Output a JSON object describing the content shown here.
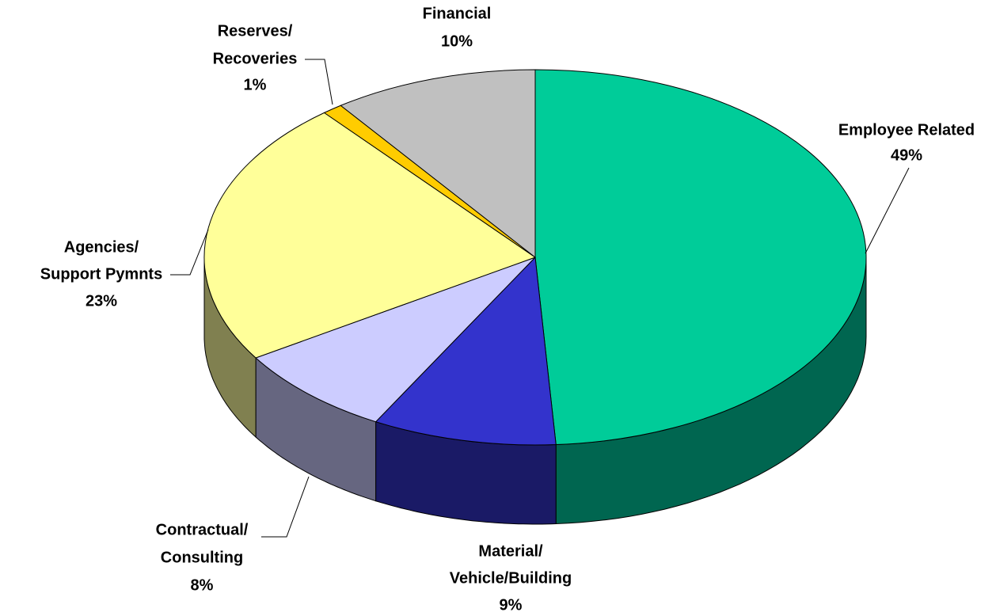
{
  "chart_data": {
    "type": "pie3d",
    "categories": [
      [
        "Employee Related"
      ],
      [
        "Material/",
        "Vehicle/Building"
      ],
      [
        "Contractual/",
        "Consulting"
      ],
      [
        "Agencies/",
        "Support Pymnts"
      ],
      [
        "Reserves/",
        "Recoveries"
      ],
      [
        "Financial"
      ]
    ],
    "values": [
      49,
      9,
      8,
      23,
      1,
      10
    ],
    "value_labels": [
      "49%",
      "9%",
      "8%",
      "23%",
      "1%",
      "10%"
    ],
    "colors": [
      "#00cc99",
      "#3333cc",
      "#ccccff",
      "#ffff99",
      "#ffcc00",
      "#c0c0c0"
    ],
    "depth_colors": [
      "#006650",
      "#1a1a66",
      "#666680",
      "#808050",
      "#806600",
      "#606060"
    ],
    "start_angle": "top",
    "direction": "clockwise"
  }
}
